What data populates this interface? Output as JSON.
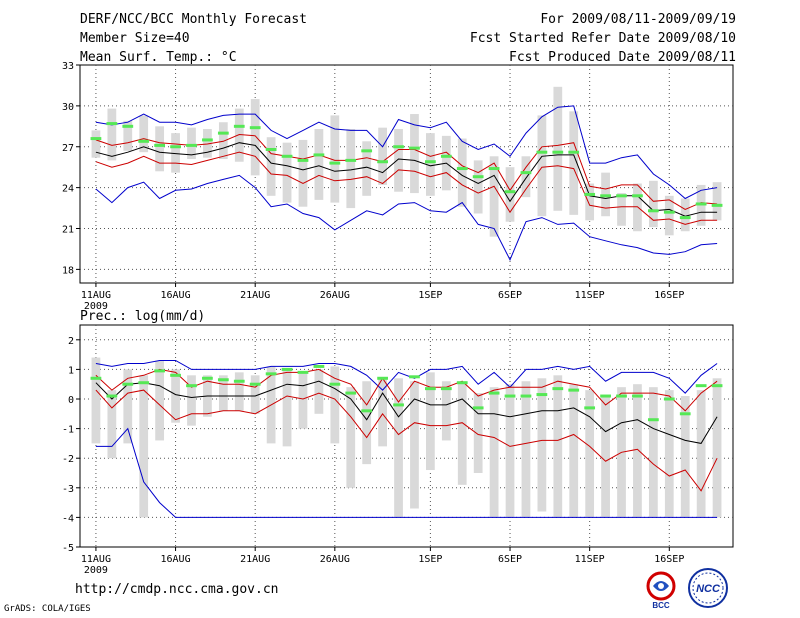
{
  "header": {
    "left": [
      "DERF/NCC/BCC Monthly Forecast",
      "Member Size=40",
      "Mean Surf. Temp.: °C"
    ],
    "right": [
      "For 2009/08/11-2009/09/19",
      "Fcst Started Refer Date 2009/08/10",
      "Fcst Produced Date 2009/08/11"
    ]
  },
  "footer": {
    "url": "http://cmdp.ncc.cma.gov.cn",
    "credit": "GrADS: COLA/IGES"
  },
  "logos": {
    "bcc": "BCC",
    "ncc": "NCC"
  },
  "colors": {
    "envelope": "#0000cc",
    "spread": "#cc0000",
    "mean": "#000000",
    "box": "#d9d9d9",
    "member": "#55e855",
    "grid": "#555555"
  },
  "chart_data": [
    {
      "type": "line",
      "title": "Mean Surf. Temp.: °C",
      "x_label_year": "2009",
      "x_ticks": [
        {
          "day": 0,
          "label": "11AUG"
        },
        {
          "day": 5,
          "label": "16AUG"
        },
        {
          "day": 10,
          "label": "21AUG"
        },
        {
          "day": 15,
          "label": "26AUG"
        },
        {
          "day": 21,
          "label": "1SEP"
        },
        {
          "day": 26,
          "label": "6SEP"
        },
        {
          "day": 31,
          "label": "11SEP"
        },
        {
          "day": 36,
          "label": "16SEP"
        }
      ],
      "xlim": [
        -1,
        40
      ],
      "ylim": [
        17,
        33
      ],
      "y_ticks": [
        18,
        21,
        24,
        27,
        30,
        33
      ],
      "days": 40,
      "max": [
        28.8,
        28.6,
        28.8,
        29.4,
        28.8,
        28.8,
        28.6,
        29.0,
        29.3,
        29.4,
        29.4,
        28.2,
        27.6,
        28.2,
        28.8,
        28.3,
        28.2,
        28.2,
        27.0,
        29.0,
        28.6,
        28.4,
        28.8,
        27.4,
        26.8,
        27.2,
        26.3,
        28.0,
        29.2,
        29.9,
        30.0,
        25.8,
        25.8,
        26.2,
        26.4,
        25.0,
        24.2,
        23.2,
        23.8,
        24.0
      ],
      "min": [
        23.9,
        22.9,
        24.0,
        24.4,
        23.2,
        23.8,
        23.9,
        24.3,
        24.6,
        24.9,
        24.0,
        22.6,
        22.8,
        22.1,
        21.8,
        20.9,
        21.6,
        22.3,
        22.0,
        22.8,
        22.9,
        22.3,
        22.2,
        22.9,
        21.3,
        21.0,
        18.7,
        21.5,
        21.8,
        21.3,
        21.4,
        20.4,
        20.1,
        19.8,
        19.6,
        19.2,
        19.1,
        19.3,
        19.8,
        19.9
      ],
      "spread_upper": [
        27.5,
        27.1,
        27.3,
        27.6,
        27.3,
        27.2,
        27.1,
        27.2,
        27.4,
        27.9,
        27.8,
        26.5,
        26.3,
        26.1,
        26.4,
        26.0,
        26.0,
        26.2,
        25.9,
        26.8,
        26.8,
        26.3,
        26.6,
        25.6,
        25.1,
        25.8,
        23.8,
        25.5,
        27.0,
        27.1,
        27.3,
        24.1,
        23.9,
        24.2,
        24.2,
        23.0,
        23.1,
        22.4,
        22.9,
        22.8
      ],
      "spread_lower": [
        25.9,
        25.5,
        25.8,
        26.3,
        25.8,
        25.8,
        25.7,
        26.0,
        26.3,
        26.6,
        26.3,
        25.0,
        24.9,
        24.3,
        24.9,
        24.5,
        24.6,
        24.8,
        24.3,
        25.3,
        25.2,
        24.8,
        25.1,
        24.2,
        23.6,
        24.1,
        22.2,
        23.9,
        25.5,
        25.6,
        25.4,
        22.7,
        22.5,
        22.6,
        22.6,
        21.6,
        21.7,
        21.3,
        21.6,
        21.6
      ],
      "mean": [
        26.6,
        26.3,
        26.6,
        27.0,
        26.6,
        26.5,
        26.4,
        26.6,
        26.9,
        27.3,
        27.1,
        25.8,
        25.6,
        25.3,
        25.6,
        25.2,
        25.3,
        25.5,
        25.1,
        26.1,
        26.0,
        25.6,
        25.8,
        24.9,
        24.3,
        24.9,
        23.0,
        24.7,
        26.3,
        26.4,
        26.4,
        23.4,
        23.2,
        23.4,
        23.4,
        22.3,
        22.4,
        21.9,
        22.2,
        22.2
      ],
      "box_top": [
        28.2,
        29.8,
        28.9,
        29.3,
        28.5,
        28.0,
        28.4,
        28.3,
        28.8,
        29.8,
        30.5,
        27.7,
        27.3,
        27.5,
        28.3,
        29.3,
        28.3,
        27.4,
        28.4,
        28.3,
        29.4,
        28.0,
        27.8,
        27.6,
        26.0,
        26.3,
        25.5,
        26.3,
        29.3,
        31.4,
        29.6,
        24.3,
        25.1,
        23.6,
        24.3,
        24.5,
        23.4,
        23.2,
        24.2,
        24.4
      ],
      "box_bottom": [
        26.2,
        26.0,
        26.7,
        26.6,
        25.2,
        25.1,
        26.1,
        26.2,
        26.1,
        25.9,
        24.9,
        23.4,
        22.9,
        22.6,
        23.1,
        22.9,
        22.5,
        23.4,
        24.2,
        23.7,
        23.6,
        23.4,
        23.8,
        22.6,
        22.1,
        20.4,
        21.5,
        23.3,
        21.9,
        22.3,
        22.0,
        21.6,
        21.9,
        21.2,
        20.8,
        21.1,
        20.5,
        20.8,
        21.2,
        21.6
      ],
      "member": [
        27.6,
        28.7,
        28.5,
        27.4,
        27.1,
        27.0,
        27.1,
        27.5,
        28.0,
        28.5,
        28.4,
        26.8,
        26.3,
        26.0,
        26.4,
        25.8,
        26.0,
        26.7,
        25.9,
        27.0,
        26.9,
        25.9,
        26.3,
        25.4,
        24.8,
        25.4,
        23.7,
        25.1,
        26.6,
        26.6,
        26.6,
        23.5,
        23.4,
        23.4,
        23.4,
        22.3,
        22.2,
        21.8,
        22.8,
        22.7
      ]
    },
    {
      "type": "line",
      "title": "Prec.: log(mm/d)",
      "x_label_year": "2009",
      "x_ticks": [
        {
          "day": 0,
          "label": "11AUG"
        },
        {
          "day": 5,
          "label": "16AUG"
        },
        {
          "day": 10,
          "label": "21AUG"
        },
        {
          "day": 15,
          "label": "26AUG"
        },
        {
          "day": 21,
          "label": "1SEP"
        },
        {
          "day": 26,
          "label": "6SEP"
        },
        {
          "day": 31,
          "label": "11SEP"
        },
        {
          "day": 36,
          "label": "16SEP"
        }
      ],
      "xlim": [
        -1,
        40
      ],
      "ylim": [
        -5,
        2.5
      ],
      "y_ticks": [
        -5,
        -4,
        -3,
        -2,
        -1,
        0,
        1,
        2
      ],
      "days": 40,
      "max": [
        1.2,
        1.1,
        1.2,
        1.2,
        1.3,
        1.3,
        1.0,
        1.0,
        1.0,
        1.0,
        1.0,
        1.1,
        1.1,
        1.1,
        1.2,
        1.2,
        1.1,
        0.8,
        0.3,
        0.9,
        0.7,
        1.0,
        1.0,
        1.1,
        0.5,
        0.9,
        0.4,
        1.0,
        1.0,
        1.1,
        1.0,
        1.1,
        0.6,
        0.9,
        0.9,
        0.9,
        0.7,
        0.2,
        0.8,
        1.2
      ],
      "min": [
        -1.6,
        -1.6,
        -1.0,
        -2.8,
        -3.5,
        -4.0,
        -4.0,
        -4.0,
        -4.0,
        -4.0,
        -4.0,
        -4.0,
        -4.0,
        -4.0,
        -4.0,
        -4.0,
        -4.0,
        -4.0,
        -4.0,
        -4.0,
        -4.0,
        -4.0,
        -4.0,
        -4.0,
        -4.0,
        -4.0,
        -4.0,
        -4.0,
        -4.0,
        -4.0,
        -4.0,
        -4.0,
        -4.0,
        -4.0,
        -4.0,
        -4.0,
        -4.0,
        -4.0,
        -4.0,
        -4.0
      ],
      "spread_upper": [
        0.8,
        0.3,
        0.7,
        0.8,
        1.0,
        0.9,
        0.4,
        0.6,
        0.5,
        0.5,
        0.4,
        0.8,
        0.9,
        0.9,
        1.0,
        0.7,
        0.5,
        -0.2,
        0.7,
        -0.1,
        0.6,
        0.4,
        0.4,
        0.6,
        0.1,
        0.3,
        0.4,
        0.4,
        0.4,
        0.6,
        0.5,
        0.4,
        -0.2,
        0.2,
        0.2,
        0.2,
        0.1,
        -0.4,
        0.2,
        0.6
      ],
      "spread_lower": [
        0.3,
        -0.3,
        0.2,
        0.3,
        -0.2,
        -0.7,
        -0.5,
        -0.5,
        -0.4,
        -0.4,
        -0.5,
        -0.2,
        0.1,
        0.0,
        0.2,
        0.0,
        -0.6,
        -1.3,
        -0.5,
        -1.2,
        -0.8,
        -0.9,
        -0.9,
        -0.8,
        -1.2,
        -1.3,
        -1.6,
        -1.5,
        -1.4,
        -1.4,
        -1.2,
        -1.6,
        -2.1,
        -1.8,
        -1.7,
        -2.2,
        -2.6,
        -2.4,
        -3.1,
        -2.0
      ],
      "mean": [
        0.55,
        0.0,
        0.5,
        0.55,
        0.45,
        0.15,
        0.05,
        0.1,
        0.1,
        0.1,
        0.1,
        0.3,
        0.5,
        0.45,
        0.6,
        0.35,
        0.0,
        -0.7,
        0.2,
        -0.6,
        0.0,
        -0.2,
        -0.2,
        0.0,
        -0.5,
        -0.5,
        -0.6,
        -0.5,
        -0.4,
        -0.4,
        -0.3,
        -0.6,
        -1.1,
        -0.8,
        -0.7,
        -1.0,
        -1.2,
        -1.4,
        -1.5,
        -0.6
      ],
      "box_top": [
        1.4,
        0.3,
        1.0,
        0.8,
        1.3,
        1.0,
        0.8,
        0.8,
        0.8,
        0.9,
        0.8,
        1.1,
        1.0,
        0.9,
        1.0,
        1.1,
        0.4,
        0.6,
        0.7,
        0.7,
        0.6,
        0.9,
        0.6,
        0.6,
        0.2,
        0.4,
        0.5,
        0.6,
        0.7,
        0.8,
        0.5,
        0.3,
        0.1,
        0.4,
        0.5,
        0.4,
        0.3,
        0.1,
        0.3,
        0.7
      ],
      "box_bottom": [
        -1.5,
        -2.0,
        -1.5,
        -4.0,
        -1.4,
        -0.8,
        -0.9,
        -0.6,
        -0.4,
        -0.4,
        -0.5,
        -1.5,
        -1.6,
        -1.0,
        -0.5,
        -1.5,
        -3.0,
        -2.2,
        -1.6,
        -4.0,
        -3.7,
        -2.4,
        -1.4,
        -2.9,
        -2.5,
        -4.0,
        -4.0,
        -4.0,
        -3.8,
        -4.0,
        -4.0,
        -4.0,
        -4.0,
        -4.0,
        -4.0,
        -4.0,
        -4.0,
        -4.0,
        -4.0,
        -4.0
      ],
      "member": [
        0.7,
        0.1,
        0.5,
        0.55,
        0.95,
        0.8,
        0.45,
        0.7,
        0.65,
        0.6,
        0.5,
        0.85,
        1.0,
        0.9,
        1.1,
        0.5,
        0.2,
        -0.4,
        0.7,
        -0.2,
        0.75,
        0.35,
        0.35,
        0.55,
        -0.3,
        0.2,
        0.1,
        0.1,
        0.15,
        0.35,
        0.3,
        -0.3,
        0.1,
        0.1,
        0.1,
        -0.7,
        0.0,
        -0.5,
        0.45,
        0.45
      ]
    }
  ]
}
